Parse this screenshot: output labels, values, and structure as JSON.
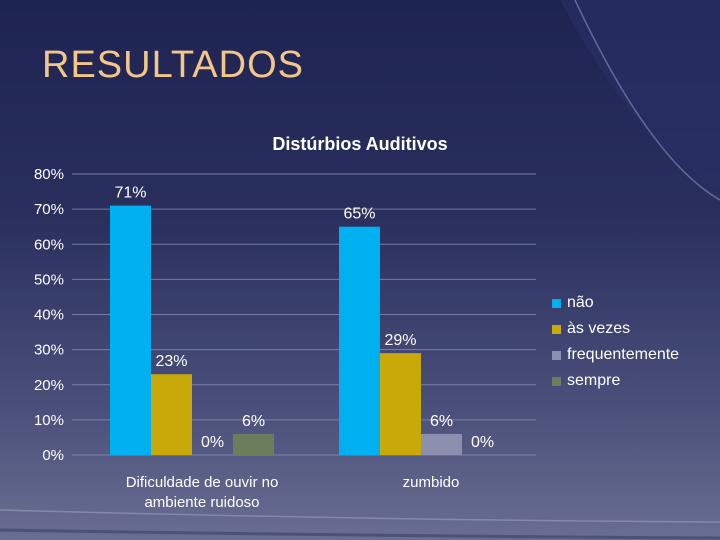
{
  "slide": {
    "title": "RESULTADOS"
  },
  "chart_data": {
    "type": "bar",
    "title": "Distúrbios Auditivos",
    "categories": [
      "Dificuldade de ouvir no ambiente ruidoso",
      "zumbido"
    ],
    "category_lines": [
      [
        "Dificuldade de ouvir no",
        "ambiente ruidoso"
      ],
      [
        "zumbido"
      ]
    ],
    "series": [
      {
        "name": "não",
        "values": [
          71,
          65
        ],
        "labels": [
          "71%",
          "65%"
        ],
        "color": "#00b0f0"
      },
      {
        "name": "às vezes",
        "values": [
          23,
          29
        ],
        "labels": [
          "23%",
          "29%"
        ],
        "color": "#c9a80a"
      },
      {
        "name": "frequentemente",
        "values": [
          0,
          6
        ],
        "labels": [
          "0%",
          "6%"
        ],
        "color": "#8c8fad"
      },
      {
        "name": "sempre",
        "values": [
          6,
          0
        ],
        "labels": [
          "6%",
          "0%"
        ],
        "color": "#6b7d5a"
      }
    ],
    "yticks": [
      "0%",
      "10%",
      "20%",
      "30%",
      "40%",
      "50%",
      "60%",
      "70%",
      "80%"
    ],
    "ylim": [
      0,
      80
    ],
    "grid": true,
    "legend_position": "right"
  }
}
